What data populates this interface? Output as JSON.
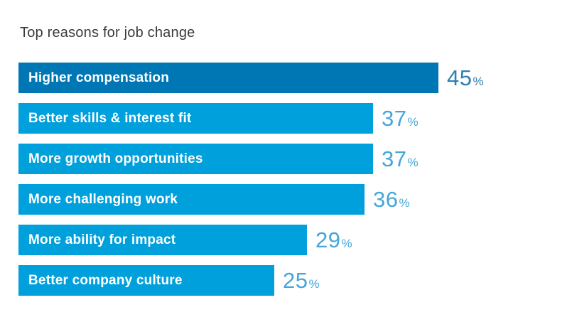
{
  "chart_data": {
    "type": "bar",
    "orientation": "horizontal",
    "title": "Top reasons for job change",
    "categories": [
      "Higher compensation",
      "Better skills & interest fit",
      "More growth opportunities",
      "More challenging work",
      "More ability for impact",
      "Better company culture"
    ],
    "values": [
      45,
      37,
      37,
      36,
      29,
      25
    ],
    "unit": "%",
    "value_labels": [
      "45%",
      "37%",
      "37%",
      "36%",
      "29%",
      "25%"
    ],
    "xlim": [
      0,
      45
    ],
    "grid": false,
    "legend": false
  },
  "colors": {
    "background": "#ffffff",
    "title_text": "#3b3b3b",
    "bar_label_text": "#ffffff",
    "bar_primary": "#0077B5",
    "bar_secondary": "#00A0DC",
    "value_primary": "#2E7FB0",
    "value_secondary": "#44A6D8"
  }
}
